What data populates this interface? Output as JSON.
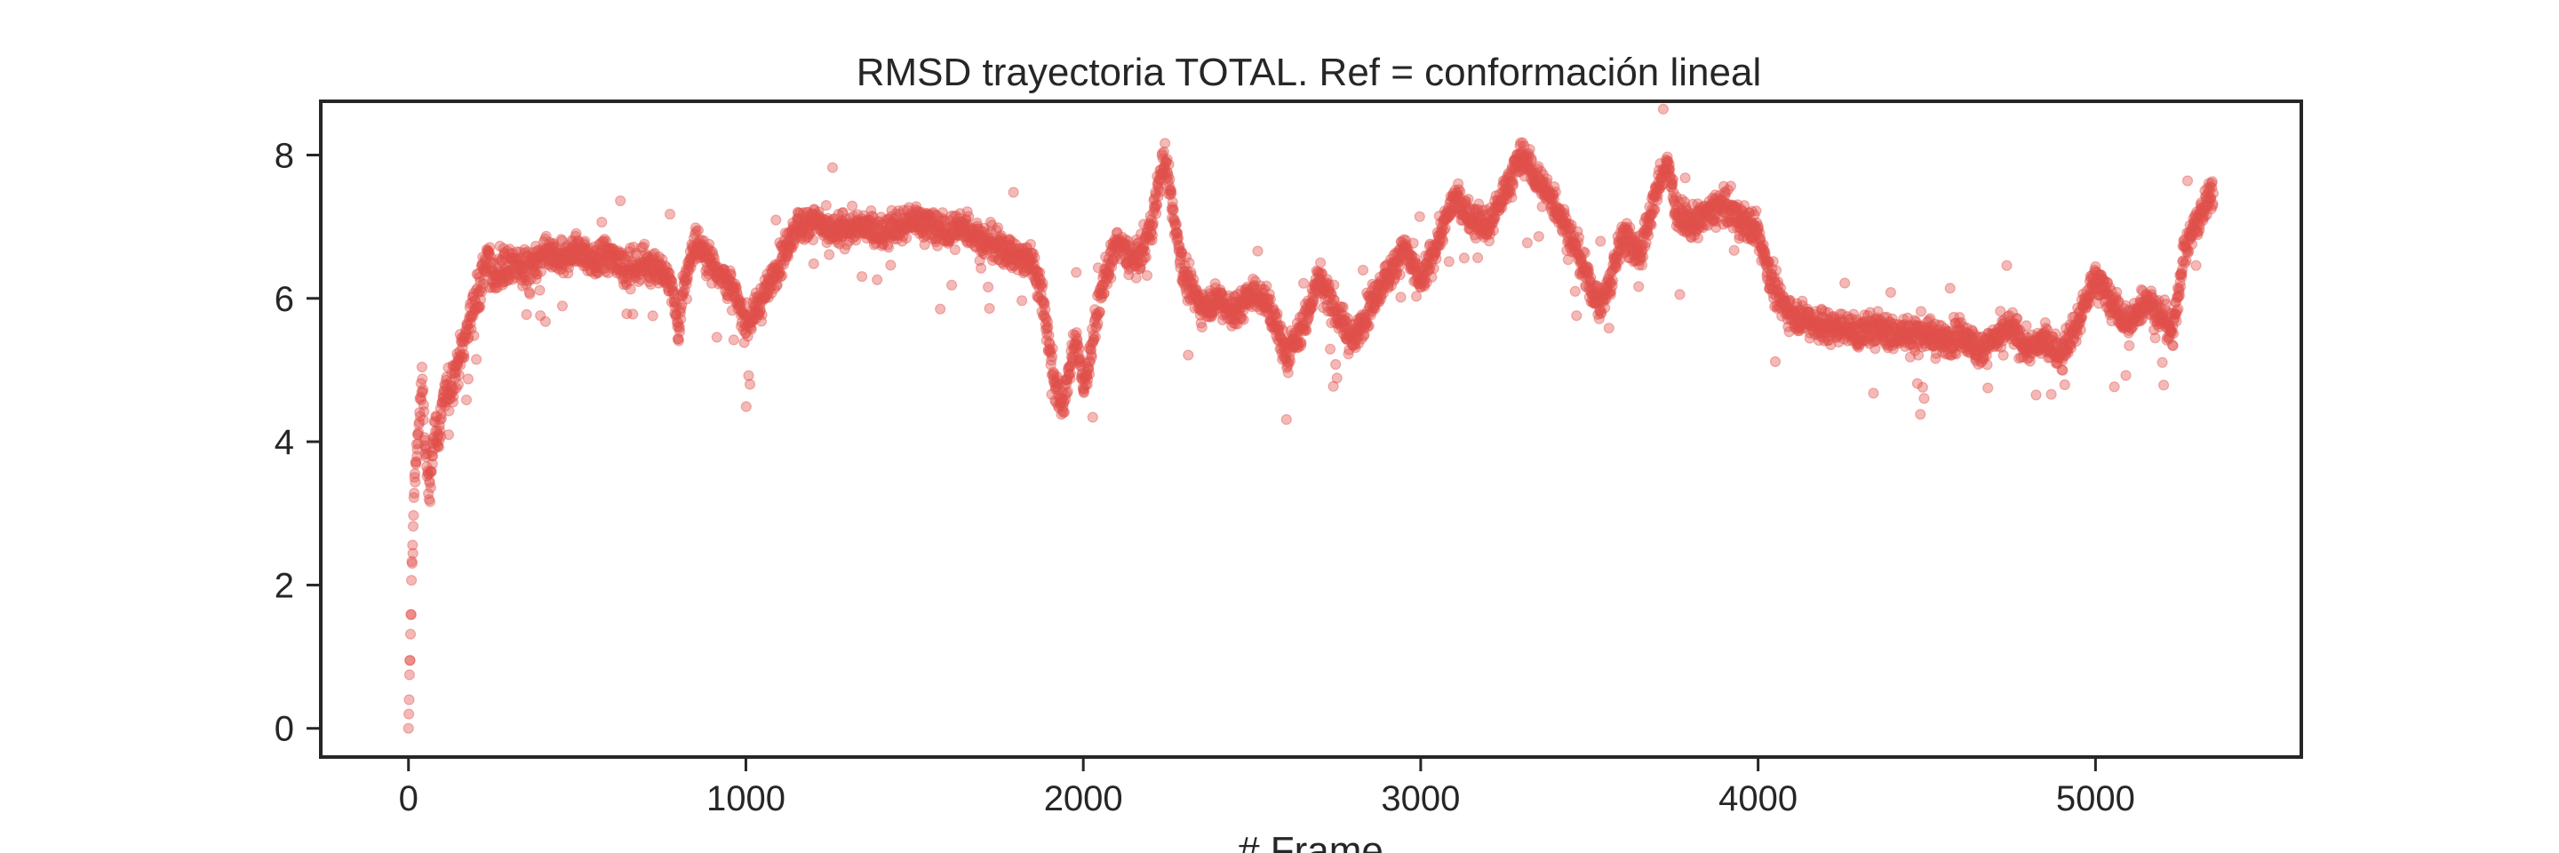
{
  "chart_data": {
    "type": "scatter",
    "title": "RMSD trayectoria TOTAL. Ref = conformación lineal",
    "xlabel": "# Frame",
    "ylabel": "",
    "xlim": [
      -260,
      5610
    ],
    "ylim": [
      -0.4,
      8.75
    ],
    "xticks": [
      0,
      1000,
      2000,
      3000,
      4000,
      5000
    ],
    "xtick_labels": [
      "0",
      "1000",
      "2000",
      "3000",
      "4000",
      "5000"
    ],
    "yticks": [
      0,
      2,
      4,
      6,
      8
    ],
    "ytick_labels": [
      "0",
      "2",
      "4",
      "6",
      "8"
    ],
    "grid": false,
    "legend": "none",
    "marker_color": "#e0504c",
    "marker_opacity": 0.4,
    "n_points": 5350,
    "series": [
      {
        "x": [
          0,
          5,
          10,
          15,
          20,
          30,
          40,
          50,
          60,
          70,
          80,
          90,
          100,
          120,
          140,
          160,
          180,
          200,
          230,
          260,
          280,
          300,
          350,
          400,
          450,
          500,
          550,
          600,
          650,
          700,
          750,
          780,
          800,
          820,
          850,
          900,
          950,
          980,
          1000,
          1050,
          1100,
          1150,
          1200,
          1250,
          1300,
          1350,
          1400,
          1450,
          1500,
          1550,
          1600,
          1650,
          1700,
          1750,
          1800,
          1850,
          1880,
          1900,
          1920,
          1940,
          1960,
          1980,
          2000,
          2030,
          2060,
          2100,
          2150,
          2180,
          2200,
          2220,
          2240,
          2260,
          2280,
          2300,
          2350,
          2400,
          2450,
          2500,
          2550,
          2600,
          2650,
          2700,
          2750,
          2800,
          2850,
          2900,
          2950,
          3000,
          3050,
          3100,
          3150,
          3200,
          3250,
          3300,
          3350,
          3400,
          3450,
          3500,
          3530,
          3560,
          3600,
          3650,
          3700,
          3730,
          3760,
          3800,
          3850,
          3900,
          3950,
          3980,
          4000,
          4030,
          4060,
          4100,
          4150,
          4200,
          4250,
          4300,
          4350,
          4400,
          4450,
          4500,
          4550,
          4600,
          4650,
          4700,
          4750,
          4800,
          4850,
          4900,
          4950,
          5000,
          5050,
          5100,
          5150,
          5200,
          5230,
          5260,
          5290,
          5320,
          5340
        ],
        "y": [
          0.0,
          1.0,
          2.2,
          3.0,
          3.6,
          4.2,
          4.8,
          3.9,
          3.3,
          3.8,
          4.2,
          4.0,
          4.6,
          4.7,
          5.0,
          5.3,
          5.7,
          6.0,
          6.5,
          6.3,
          6.4,
          6.5,
          6.4,
          6.6,
          6.5,
          6.7,
          6.5,
          6.6,
          6.4,
          6.5,
          6.4,
          6.2,
          5.5,
          6.3,
          6.8,
          6.5,
          6.2,
          5.9,
          5.6,
          6.0,
          6.5,
          7.0,
          7.1,
          6.9,
          7.0,
          7.0,
          6.9,
          7.0,
          7.1,
          7.0,
          6.9,
          7.0,
          6.8,
          6.7,
          6.6,
          6.5,
          6.0,
          5.3,
          4.7,
          4.5,
          5.0,
          5.5,
          4.7,
          5.5,
          6.2,
          6.8,
          6.5,
          6.7,
          7.0,
          7.5,
          8.0,
          7.4,
          6.8,
          6.3,
          5.9,
          6.0,
          5.8,
          6.1,
          5.9,
          5.2,
          5.6,
          6.3,
          5.8,
          5.4,
          5.9,
          6.3,
          6.7,
          6.2,
          6.8,
          7.4,
          7.1,
          7.0,
          7.5,
          8.0,
          7.6,
          7.3,
          6.8,
          6.2,
          5.9,
          6.2,
          6.9,
          6.6,
          7.5,
          7.9,
          7.2,
          7.0,
          7.2,
          7.3,
          7.1,
          7.0,
          6.9,
          6.4,
          6.0,
          5.8,
          5.7,
          5.6,
          5.6,
          5.5,
          5.6,
          5.5,
          5.5,
          5.5,
          5.4,
          5.5,
          5.3,
          5.4,
          5.6,
          5.3,
          5.4,
          5.2,
          5.7,
          6.3,
          5.9,
          5.6,
          6.0,
          5.7,
          5.5,
          6.6,
          7.0,
          7.2,
          7.5
        ]
      }
    ]
  }
}
